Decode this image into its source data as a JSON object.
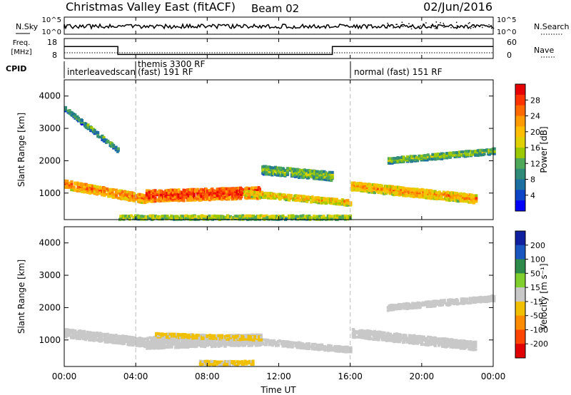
{
  "header": {
    "title": "Christmas Valley East (fitACF)",
    "beam": "Beam 02",
    "date": "02/Jun/2016"
  },
  "strip_labels": {
    "nsky": "N.Sky",
    "nsearch": "N.Search",
    "freq": "Freq.",
    "freq_unit": "[MHz]",
    "nave": "Nave",
    "cpid": "CPID"
  },
  "strip_ticks": {
    "noise_left": [
      "10^5",
      "10^0"
    ],
    "noise_right": [
      "10^5",
      "10^0"
    ],
    "freq_left": [
      "18",
      "8"
    ],
    "nave_right": [
      "60",
      "0"
    ]
  },
  "cpid_segments": [
    {
      "label": "interleavedscan",
      "start_h": 0.0
    },
    {
      "label": "themis 3300 RF",
      "start_h": 4.0
    },
    {
      "label": "(fast) 191 RF",
      "start_h": 4.0
    },
    {
      "label": "normal (fast) 151 RF",
      "start_h": 16.0
    }
  ],
  "power_panel": {
    "ylabel": "Slant Range [km]",
    "cbar_label": "Power [dB]",
    "cbar_ticks": [
      "28",
      "24",
      "20",
      "16",
      "12",
      "8",
      "4"
    ],
    "cbar_colors": [
      "#e60000",
      "#ff3300",
      "#ff6a00",
      "#ff9a00",
      "#ffbf00",
      "#e0d000",
      "#9cc800",
      "#4fa75a",
      "#2f8a78",
      "#1c6fa0",
      "#0e45c8",
      "#0000ff"
    ]
  },
  "velocity_panel": {
    "ylabel": "Slant Range [km]",
    "cbar_label": "Velocity [m s⁻¹]",
    "cbar_ticks": [
      "200",
      "100",
      "50",
      "15",
      "-15",
      "-50",
      "-100",
      "-200"
    ],
    "cbar_colors": [
      "#1020a0",
      "#1a55c0",
      "#2e8a4a",
      "#7fcf2e",
      "#c8c8c8",
      "#f0c000",
      "#ff8c00",
      "#ff4500",
      "#e00000"
    ]
  },
  "xaxis": {
    "label": "Time UT",
    "ticks": [
      "00:00",
      "04:00",
      "08:00",
      "12:00",
      "16:00",
      "20:00",
      "00:00"
    ]
  },
  "chart_data": {
    "type": "heatmap",
    "title": "Christmas Valley East (fitACF)",
    "subtitle": "Beam 02",
    "date": "02/Jun/2016",
    "xlabel": "Time UT",
    "ylabel": "Slant Range [km]",
    "xlim_hours": [
      0,
      24
    ],
    "ylim_km": [
      180,
      4500
    ],
    "y_ticks_km": [
      1000,
      2000,
      3000,
      4000
    ],
    "mode_change_hours": [
      4,
      16
    ],
    "frequency_mhz": [
      {
        "from_h": 0,
        "to_h": 3,
        "value": 14
      },
      {
        "from_h": 3,
        "to_h": 15,
        "value": 10
      },
      {
        "from_h": 15,
        "to_h": 24,
        "value": 14
      }
    ],
    "power": {
      "label": "Power [dB]",
      "scale": [
        0,
        32
      ],
      "echo_bands": [
        {
          "start_h": 0.0,
          "end_h": 3.0,
          "range_start_km": 3600,
          "range_end_km": 2300,
          "thickness_km": 150,
          "dB": 9
        },
        {
          "start_h": 0.0,
          "end_h": 4.5,
          "range_start_km": 1250,
          "range_end_km": 800,
          "thickness_km": 250,
          "dB": 22
        },
        {
          "start_h": 4.5,
          "end_h": 11.0,
          "range_start_km": 900,
          "range_end_km": 1000,
          "thickness_km": 350,
          "dB": 26
        },
        {
          "start_h": 11.0,
          "end_h": 15.0,
          "range_start_km": 1700,
          "range_end_km": 1500,
          "thickness_km": 250,
          "dB": 12
        },
        {
          "start_h": 10.0,
          "end_h": 16.0,
          "range_start_km": 1000,
          "range_end_km": 700,
          "thickness_km": 200,
          "dB": 18
        },
        {
          "start_h": 16.0,
          "end_h": 23.0,
          "range_start_km": 1200,
          "range_end_km": 800,
          "thickness_km": 250,
          "dB": 20
        },
        {
          "start_h": 18.0,
          "end_h": 24.0,
          "range_start_km": 2000,
          "range_end_km": 2300,
          "thickness_km": 200,
          "dB": 12
        },
        {
          "start_h": 3.0,
          "end_h": 16.0,
          "range_start_km": 250,
          "range_end_km": 250,
          "thickness_km": 150,
          "dB": 14
        }
      ]
    },
    "velocity": {
      "label": "Velocity [m s⁻¹]",
      "scale": [
        -250,
        250
      ],
      "echo_bands": [
        {
          "start_h": 0.0,
          "end_h": 4.5,
          "range_start_km": 1200,
          "range_end_km": 900,
          "thickness_km": 250,
          "v": 0
        },
        {
          "start_h": 4.5,
          "end_h": 11.0,
          "range_start_km": 900,
          "range_end_km": 1000,
          "thickness_km": 350,
          "v": 0
        },
        {
          "start_h": 10.0,
          "end_h": 16.0,
          "range_start_km": 1000,
          "range_end_km": 700,
          "thickness_km": 200,
          "v": 0
        },
        {
          "start_h": 16.0,
          "end_h": 23.0,
          "range_start_km": 1200,
          "range_end_km": 800,
          "thickness_km": 250,
          "v": 0
        },
        {
          "start_h": 18.0,
          "end_h": 24.0,
          "range_start_km": 2000,
          "range_end_km": 2300,
          "thickness_km": 200,
          "v": 0
        },
        {
          "start_h": 5.0,
          "end_h": 11.0,
          "range_start_km": 1150,
          "range_end_km": 1050,
          "thickness_km": 150,
          "v": -40
        },
        {
          "start_h": 7.5,
          "end_h": 10.5,
          "range_start_km": 280,
          "range_end_km": 280,
          "thickness_km": 120,
          "v": -40
        }
      ]
    }
  }
}
